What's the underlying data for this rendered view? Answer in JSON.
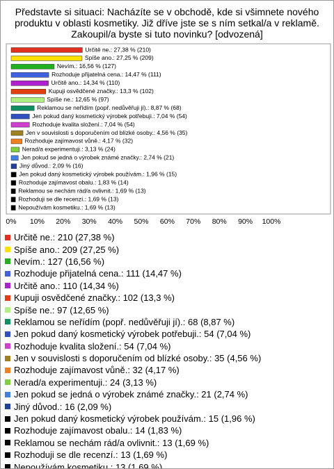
{
  "chart_data": {
    "type": "bar",
    "orientation": "horizontal",
    "title": "Představte si situaci: Nacházíte se v obchodě, kde si všimnete nového produktu v oblasti kosmetiky. Již dříve jste se s ním setkal/a v reklamě. Zakoupil/a byste si tuto novinku? [odvozená]",
    "values": [
      27.38,
      27.25,
      16.56,
      14.47,
      14.34,
      13.3,
      12.65,
      8.87,
      7.04,
      7.04,
      4.56,
      4.17,
      3.13,
      2.74,
      2.09,
      1.96,
      1.83,
      1.69,
      1.69,
      1.69
    ],
    "value_labels": [
      "Určitě ne.: 27,38 % (210)",
      "Spíše ano.: 27,25 % (209)",
      "Nevím.: 16,56 % (127)",
      "Rozhoduje přijatelná cena.: 14,47 % (111)",
      "Určitě ano.: 14,34 % (110)",
      "Kupuji osvědčené značky.: 13,3 % (102)",
      "Spíše ne.: 12,65 % (97)",
      "Reklamou se neřídím (popř. nedůvěřuji jí).: 8,87 % (68)",
      "Jen pokud daný kosmetický výrobek potřebuji.: 7,04 % (54)",
      "Rozhoduje kvalita složení.: 7,04 % (54)",
      "Jen v souvislosti s doporučením od blízké osoby.: 4,56 % (35)",
      "Rozhoduje zajímavost vůně.: 4,17 % (32)",
      "Nerad/a experimentuji.: 3,13 % (24)",
      "Jen pokud se jedná o výrobek známé značky.: 2,74 % (21)",
      "Jiný důvod.: 2,09 % (16)",
      "Jen pokud daný kosmetický výrobek používám.: 1,96 % (15)",
      "Rozhoduje zajímavost obalu.: 1,83 % (14)",
      "Reklamou se nechám rád/a ovlivnit.: 1,69 % (13)",
      "Rozhoduji se dle recenzí.: 1,69 % (13)",
      "Nepoužívám kosmetiku.: 1,69 % (13)"
    ],
    "legend_labels": [
      "Určitě ne.: 210 (27,38 %)",
      "Spíše ano.: 209 (27,25 %)",
      "Nevím.: 127 (16,56 %)",
      "Rozhoduje přijatelná cena.: 111 (14,47 %)",
      "Určitě ano.: 110 (14,34 %)",
      "Kupuji osvědčené značky.: 102 (13,3 %)",
      "Spíše ne.: 97 (12,65 %)",
      "Reklamou se neřídím (popř. nedůvěřuji jí).: 68 (8,87 %)",
      "Jen pokud daný kosmetický výrobek potřebuji.: 54 (7,04 %)",
      "Rozhoduje kvalita složení.: 54 (7,04 %)",
      "Jen v souvislosti s doporučením od blízké osoby.: 35 (4,56 %)",
      "Rozhoduje zajímavost vůně.: 32 (4,17 %)",
      "Nerad/a experimentuji.: 24 (3,13 %)",
      "Jen pokud se jedná o výrobek známé značky.: 21 (2,74 %)",
      "Jiný důvod.: 16 (2,09 %)",
      "Jen pokud daný kosmetický výrobek používám.: 15 (1,96 %)",
      "Rozhoduje zajímavost obalu.: 14 (1,83 %)",
      "Reklamou se nechám rád/a ovlivnit.: 13 (1,69 %)",
      "Rozhoduji se dle recenzí.: 13 (1,69 %)",
      "Nepoužívám kosmetiku.: 13 (1,69 %)"
    ],
    "colors": [
      "#e03020",
      "#ffe000",
      "#20b020",
      "#4060e0",
      "#b020d0",
      "#e04010",
      "#b0f080",
      "#109060",
      "#3050c0",
      "#d040d0",
      "#a08020",
      "#f08020",
      "#80d040",
      "#4080e0",
      "#2040a0",
      "#000000",
      "#000000",
      "#000000",
      "#000000",
      "#000000"
    ],
    "xlim": [
      0,
      100
    ],
    "xticks": [
      {
        "value": 0,
        "label": "0%"
      },
      {
        "value": 10,
        "label": "10%"
      },
      {
        "value": 20,
        "label": "20%"
      },
      {
        "value": 30,
        "label": "30%"
      },
      {
        "value": 40,
        "label": "40%"
      },
      {
        "value": 50,
        "label": "50%"
      },
      {
        "value": 60,
        "label": "60%"
      },
      {
        "value": 70,
        "label": "70%"
      },
      {
        "value": 80,
        "label": "80%"
      },
      {
        "value": 90,
        "label": "90%"
      },
      {
        "value": 100,
        "label": "100%"
      }
    ]
  }
}
